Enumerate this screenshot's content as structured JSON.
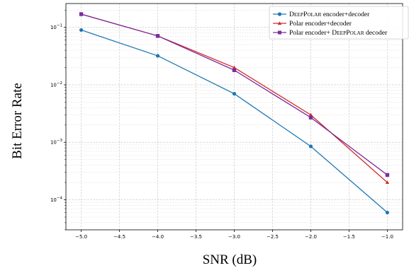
{
  "chart_data": {
    "type": "line",
    "title": "",
    "xlabel": "SNR (dB)",
    "ylabel": "Bit Error Rate",
    "xlim": [
      -5.2,
      -0.8
    ],
    "ylim": [
      3e-05,
      0.26
    ],
    "yscale": "log",
    "grid": true,
    "legend_position": "top-right",
    "x_ticks": [
      -5.0,
      -4.5,
      -4.0,
      -3.5,
      -3.0,
      -2.5,
      -2.0,
      -1.5,
      -1.0
    ],
    "x_tick_labels": [
      "−5.0",
      "−4.5",
      "−4.0",
      "−3.5",
      "−3.0",
      "−2.5",
      "−2.0",
      "−1.5",
      "−1.0"
    ],
    "y_ticks": [
      0.1,
      0.01,
      0.001,
      0.0001
    ],
    "y_tick_bases": [
      "10",
      "10",
      "10",
      "10"
    ],
    "y_tick_exponents": [
      "−1",
      "−2",
      "−3",
      "−4"
    ],
    "series": [
      {
        "name_caps_1": "D",
        "name_small_1": "EEP",
        "name_caps_2": "P",
        "name_small_2": "OLAR",
        "name_suffix": " encoder+decoder",
        "color": "#1f77b4",
        "marker": "circle",
        "x": [
          -5.0,
          -4.0,
          -3.0,
          -2.0,
          -1.0
        ],
        "y": [
          0.09,
          0.032,
          0.007,
          0.00085,
          6e-05
        ]
      },
      {
        "name": "Polar encoder+decoder",
        "color": "#d62728",
        "marker": "triangle",
        "x": [
          -5.0,
          -4.0,
          -3.0,
          -2.0,
          -1.0
        ],
        "y": [
          0.17,
          0.071,
          0.02,
          0.003,
          0.0002
        ]
      },
      {
        "name_prefix": "Polar encoder+ ",
        "name_caps_1": "D",
        "name_small_1": "EEP",
        "name_caps_2": "P",
        "name_small_2": "OLAR",
        "name_suffix": " decoder",
        "color": "#7b2d9b",
        "marker": "square",
        "x": [
          -5.0,
          -4.0,
          -3.0,
          -2.0,
          -1.0
        ],
        "y": [
          0.17,
          0.071,
          0.018,
          0.0027,
          0.00027
        ]
      }
    ]
  }
}
